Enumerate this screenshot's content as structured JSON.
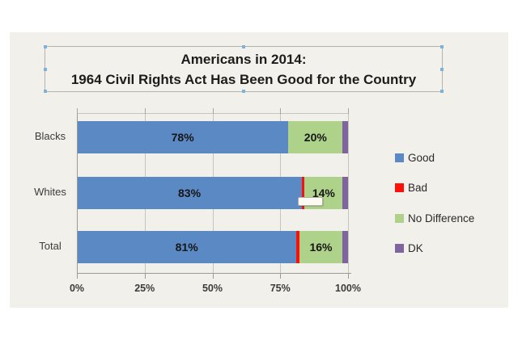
{
  "title": {
    "line1": "Americans in 2014:",
    "line2": "1964 Civil Rights Act Has Been Good for the Country"
  },
  "chart_data": {
    "type": "bar",
    "orientation": "horizontal",
    "stacked": true,
    "title": "Americans in 2014: 1964 Civil Rights Act Has Been Good for the Country",
    "categories": [
      "Blacks",
      "Whites",
      "Total"
    ],
    "series": [
      {
        "name": "Good",
        "color": "#5b89c4",
        "values": [
          78,
          83,
          81
        ],
        "labels": [
          "78%",
          "83%",
          "81%"
        ]
      },
      {
        "name": "Bad",
        "color": "#fb1108",
        "values": [
          0,
          1,
          1
        ],
        "labels": [
          "",
          "",
          ""
        ]
      },
      {
        "name": "No Difference",
        "color": "#aed289",
        "values": [
          20,
          14,
          16
        ],
        "labels": [
          "20%",
          "14%",
          "16%"
        ]
      },
      {
        "name": "DK",
        "color": "#80649f",
        "values": [
          2,
          2,
          2
        ],
        "labels": [
          "",
          "",
          ""
        ]
      }
    ],
    "x_ticks": [
      "0%",
      "25%",
      "50%",
      "75%",
      "100%"
    ],
    "xlim": [
      0,
      100
    ],
    "grid": true,
    "legend_position": "right"
  },
  "colors": {
    "panel_background": "#f2f0ea",
    "gridline": "#c6c4bb",
    "axis": "#9c9a91",
    "selection_handle": "#7fb2d9"
  }
}
